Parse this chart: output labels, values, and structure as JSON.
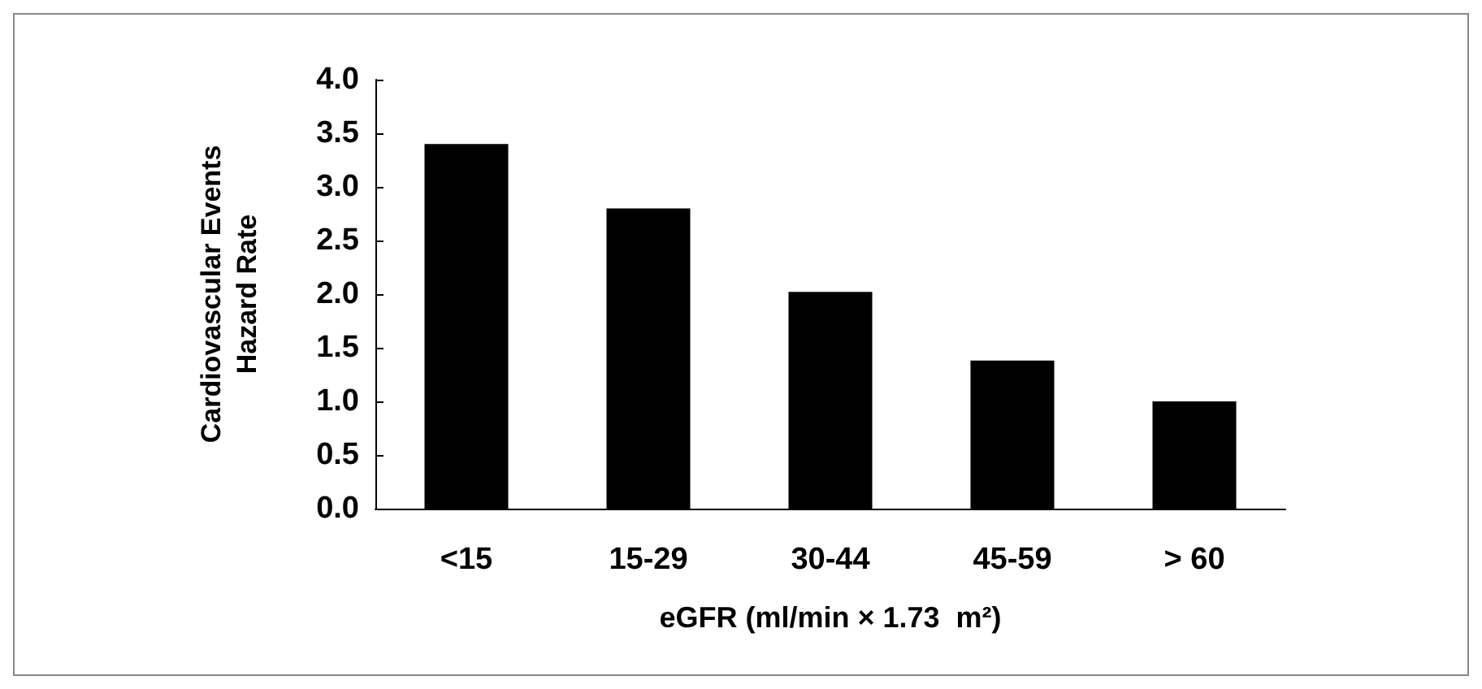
{
  "chart_data": {
    "type": "bar",
    "ylabel": "Cardiovascular Events\nHazard Rate",
    "xlabel": "eGFR (ml/min × 1.73  m²)",
    "categories": [
      "<15",
      "15-29",
      "30-44",
      "45-59",
      "> 60"
    ],
    "values": [
      3.4,
      2.8,
      2.02,
      1.38,
      1.0
    ],
    "color": "#000000",
    "ylim": [
      0,
      4
    ],
    "yticks": [
      {
        "value": 0,
        "label": "0.0"
      },
      0.5,
      {
        "value": 1,
        "label": "1.0"
      },
      1.5,
      {
        "value": 2,
        "label": "2.0"
      },
      2.5,
      {
        "value": 3,
        "label": "3.0"
      },
      3.5,
      {
        "value": 4,
        "label": "4.0"
      }
    ],
    "grid": false
  }
}
